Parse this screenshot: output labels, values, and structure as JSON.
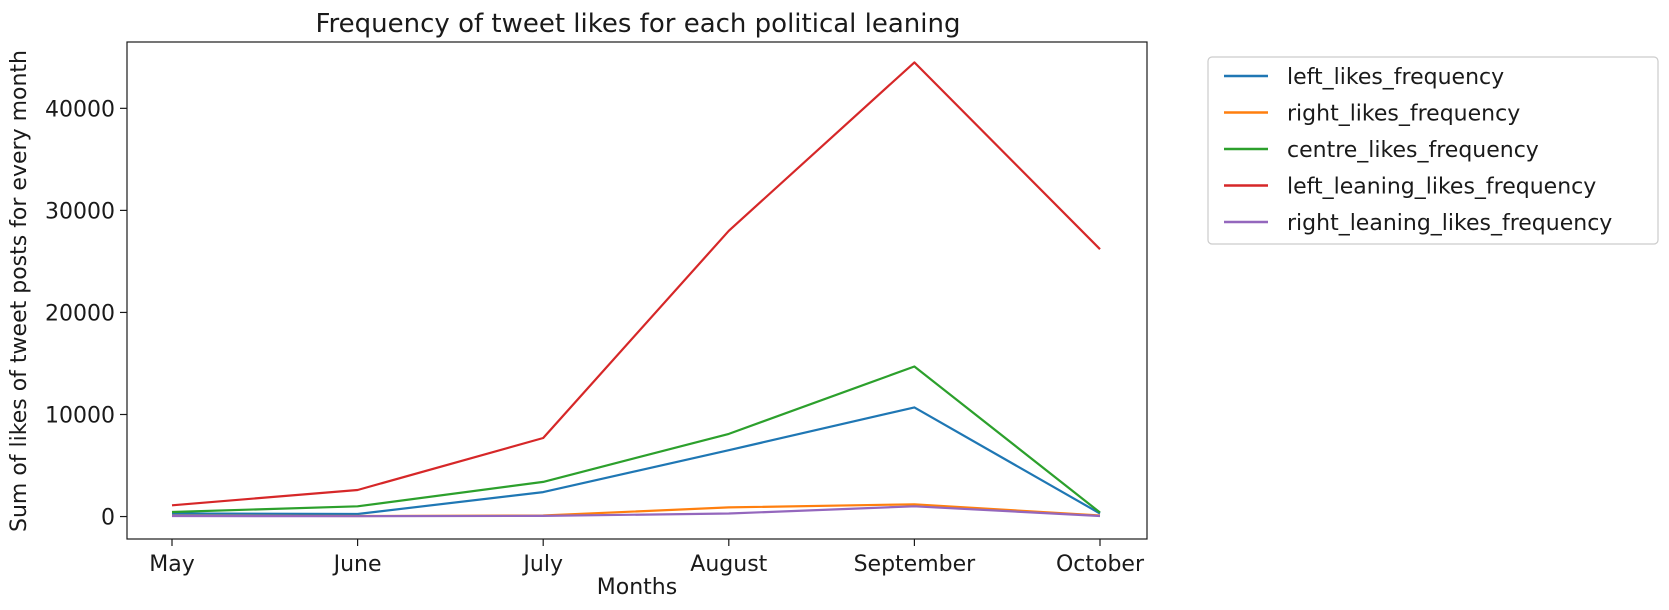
{
  "chart_data": {
    "type": "line",
    "title": "Frequency of tweet likes for each political leaning",
    "xlabel": "Months",
    "ylabel": "Sum of likes of tweet posts for every month",
    "categories": [
      "May",
      "June",
      "July",
      "August",
      "September",
      "October"
    ],
    "ylim": [
      -2200,
      46500
    ],
    "yticks": [
      0,
      10000,
      20000,
      30000,
      40000
    ],
    "grid": false,
    "legend_position": "outside-right",
    "series": [
      {
        "name": "left_likes_frequency",
        "color": "#1f77b4",
        "values": [
          300,
          250,
          2400,
          6500,
          10700,
          300
        ]
      },
      {
        "name": "right_likes_frequency",
        "color": "#ff7f0e",
        "values": [
          80,
          50,
          100,
          900,
          1200,
          100
        ]
      },
      {
        "name": "centre_likes_frequency",
        "color": "#2ca02c",
        "values": [
          450,
          1000,
          3400,
          8100,
          14700,
          400
        ]
      },
      {
        "name": "left_leaning_likes_frequency",
        "color": "#d62728",
        "values": [
          1100,
          2600,
          7700,
          28000,
          44500,
          26200
        ]
      },
      {
        "name": "right_leaning_likes_frequency",
        "color": "#9467bd",
        "values": [
          50,
          30,
          60,
          300,
          1000,
          50
        ]
      }
    ]
  }
}
